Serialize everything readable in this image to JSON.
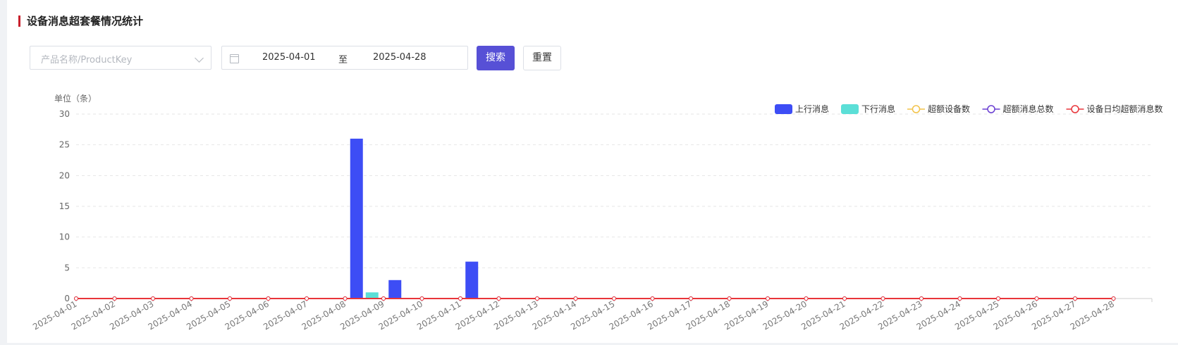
{
  "header": {
    "title": "设备消息超套餐情况统计"
  },
  "filters": {
    "product_placeholder": "产品名称/ProductKey",
    "start_date": "2025-04-01",
    "separator": "至",
    "end_date": "2025-04-28",
    "search_label": "搜索",
    "reset_label": "重置"
  },
  "colors": {
    "uplink": "#3d4df5",
    "downlink": "#5bdfd7",
    "overDevices": "#f2c34a",
    "overTotal": "#6a3fd2",
    "avgPerDevice": "#e8353a",
    "accent": "#5750d6",
    "title_bar": "#c8202c"
  },
  "chart_data": {
    "type": "bar",
    "unit_label": "单位（条）",
    "ylim": [
      0,
      30
    ],
    "yticks": [
      0,
      5,
      10,
      15,
      20,
      25,
      30
    ],
    "grid": true,
    "legend_position": "top-right",
    "categories": [
      "2025-04-01",
      "2025-04-02",
      "2025-04-03",
      "2025-04-04",
      "2025-04-05",
      "2025-04-06",
      "2025-04-07",
      "2025-04-08",
      "2025-04-09",
      "2025-04-10",
      "2025-04-11",
      "2025-04-12",
      "2025-04-13",
      "2025-04-14",
      "2025-04-15",
      "2025-04-16",
      "2025-04-17",
      "2025-04-18",
      "2025-04-19",
      "2025-04-20",
      "2025-04-21",
      "2025-04-22",
      "2025-04-23",
      "2025-04-24",
      "2025-04-25",
      "2025-04-26",
      "2025-04-27",
      "2025-04-28"
    ],
    "series": [
      {
        "name": "上行消息",
        "kind": "bar",
        "color": "#3d4df5",
        "values": [
          0,
          0,
          0,
          0,
          0,
          0,
          0,
          26,
          3,
          0,
          6,
          0,
          0,
          0,
          0,
          0,
          0,
          0,
          0,
          0,
          0,
          0,
          0,
          0,
          0,
          0,
          0,
          0
        ]
      },
      {
        "name": "下行消息",
        "kind": "bar",
        "color": "#5bdfd7",
        "values": [
          0,
          0,
          0,
          0,
          0,
          0,
          0,
          1,
          0,
          0,
          0,
          0,
          0,
          0,
          0,
          0,
          0,
          0,
          0,
          0,
          0,
          0,
          0,
          0,
          0,
          0,
          0,
          0
        ]
      },
      {
        "name": "超额设备数",
        "kind": "line",
        "color": "#f2c34a",
        "values": [
          0,
          0,
          0,
          0,
          0,
          0,
          0,
          0,
          0,
          0,
          0,
          0,
          0,
          0,
          0,
          0,
          0,
          0,
          0,
          0,
          0,
          0,
          0,
          0,
          0,
          0,
          0,
          0
        ]
      },
      {
        "name": "超额消息总数",
        "kind": "line",
        "color": "#6a3fd2",
        "values": [
          0,
          0,
          0,
          0,
          0,
          0,
          0,
          0,
          0,
          0,
          0,
          0,
          0,
          0,
          0,
          0,
          0,
          0,
          0,
          0,
          0,
          0,
          0,
          0,
          0,
          0,
          0,
          0
        ]
      },
      {
        "name": "设备日均超额消息数",
        "kind": "line",
        "color": "#e8353a",
        "values": [
          0,
          0,
          0,
          0,
          0,
          0,
          0,
          0,
          0,
          0,
          0,
          0,
          0,
          0,
          0,
          0,
          0,
          0,
          0,
          0,
          0,
          0,
          0,
          0,
          0,
          0,
          0,
          0
        ]
      }
    ]
  }
}
